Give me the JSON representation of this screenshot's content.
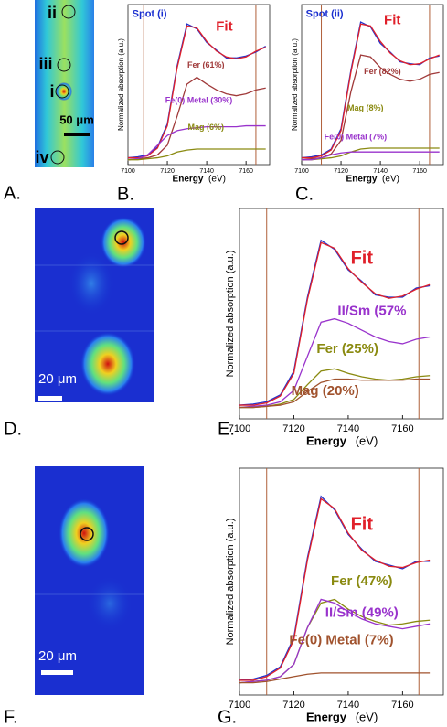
{
  "panels": [
    {
      "label": "A.",
      "spots": [
        "ii",
        "iii",
        "i",
        "iv"
      ],
      "scale": "50 μm"
    },
    {
      "label": "D.",
      "scale": "20 μm"
    },
    {
      "label": "F.",
      "scale": "20 μm"
    }
  ],
  "chart_data": [
    {
      "type": "line",
      "label": "B.",
      "title": "Spot (i)",
      "ylabel": "Normalized absorption (a.u.)",
      "xlabel": "Energy",
      "xunit": "(eV)",
      "xlim": [
        7100,
        7172
      ],
      "ylim": [
        -0.05,
        1.6
      ],
      "xticks": [
        7100,
        7120,
        7140,
        7160
      ],
      "markers": [
        7108,
        7165
      ],
      "x": [
        7100,
        7105,
        7110,
        7115,
        7120,
        7125,
        7130,
        7135,
        7140,
        7145,
        7150,
        7155,
        7160,
        7165,
        7170
      ],
      "series": [
        {
          "color": "#2233cc",
          "values": [
            0.02,
            0.03,
            0.05,
            0.13,
            0.37,
            0.97,
            1.4,
            1.35,
            1.21,
            1.13,
            1.05,
            1.05,
            1.07,
            1.11,
            1.17
          ]
        },
        {
          "name": "Fit",
          "color": "#e0202a",
          "values": [
            0.02,
            0.02,
            0.04,
            0.12,
            0.35,
            0.95,
            1.38,
            1.36,
            1.22,
            1.12,
            1.06,
            1.04,
            1.06,
            1.12,
            1.16
          ]
        },
        {
          "name": "Fer (61%)",
          "color": "#a03a3a",
          "values": [
            0,
            0.01,
            0.02,
            0.05,
            0.15,
            0.45,
            0.78,
            0.85,
            0.78,
            0.72,
            0.68,
            0.66,
            0.68,
            0.72,
            0.74
          ]
        },
        {
          "name": "Fe(0) Metal (30%)",
          "color": "#9933cc",
          "values": [
            0,
            0.01,
            0.05,
            0.15,
            0.25,
            0.3,
            0.32,
            0.33,
            0.34,
            0.34,
            0.34,
            0.34,
            0.35,
            0.35,
            0.35
          ]
        },
        {
          "name": "Mag (6%)",
          "color": "#8a8a10",
          "values": [
            0,
            0,
            0.01,
            0.02,
            0.04,
            0.08,
            0.1,
            0.11,
            0.11,
            0.11,
            0.11,
            0.11,
            0.11,
            0.11,
            0.11
          ]
        }
      ]
    },
    {
      "type": "line",
      "label": "C.",
      "title": "Spot (ii)",
      "ylabel": "Normalized absorption (a.u.)",
      "xlabel": "Energy",
      "xunit": "(eV)",
      "xlim": [
        7100,
        7172
      ],
      "ylim": [
        -0.05,
        1.6
      ],
      "xticks": [
        7100,
        7120,
        7140,
        7160
      ],
      "markers": [
        7110,
        7165
      ],
      "x": [
        7100,
        7105,
        7110,
        7115,
        7120,
        7125,
        7130,
        7135,
        7140,
        7145,
        7150,
        7155,
        7160,
        7165,
        7170
      ],
      "series": [
        {
          "color": "#2233cc",
          "values": [
            0.02,
            0.03,
            0.05,
            0.11,
            0.32,
            0.92,
            1.42,
            1.37,
            1.2,
            1.11,
            1.01,
            0.99,
            0.98,
            1.05,
            1.07
          ]
        },
        {
          "name": "Fit",
          "color": "#e0202a",
          "values": [
            0.02,
            0.02,
            0.04,
            0.1,
            0.3,
            0.9,
            1.4,
            1.38,
            1.22,
            1.1,
            1.02,
            0.98,
            0.99,
            1.04,
            1.08
          ]
        },
        {
          "name": "Fer (82%)",
          "color": "#a03a3a",
          "values": [
            0,
            0.01,
            0.02,
            0.06,
            0.2,
            0.7,
            1.08,
            1.06,
            0.95,
            0.88,
            0.83,
            0.81,
            0.83,
            0.88,
            0.9
          ]
        },
        {
          "name": "Mag (8%)",
          "color": "#8a8a10",
          "values": [
            0,
            0,
            0.01,
            0.02,
            0.04,
            0.08,
            0.11,
            0.12,
            0.12,
            0.12,
            0.12,
            0.12,
            0.12,
            0.12,
            0.12
          ]
        },
        {
          "name": "Fe(0) Metal (7%)",
          "color": "#9933cc",
          "values": [
            0,
            0,
            0.02,
            0.05,
            0.07,
            0.08,
            0.08,
            0.08,
            0.08,
            0.08,
            0.08,
            0.08,
            0.08,
            0.08,
            0.08
          ]
        }
      ]
    },
    {
      "type": "line",
      "label": "E.",
      "ylabel": "Normalized absorption (a.u.)",
      "xlabel": "Energy",
      "xunit": "(eV)",
      "xlim": [
        7100,
        7175
      ],
      "ylim": [
        -0.1,
        1.75
      ],
      "xticks": [
        7100,
        7120,
        7140,
        7160
      ],
      "markers": [
        7110,
        7166
      ],
      "x": [
        7100,
        7105,
        7110,
        7115,
        7120,
        7125,
        7130,
        7135,
        7140,
        7145,
        7150,
        7155,
        7160,
        7165,
        7170
      ],
      "series": [
        {
          "color": "#2233cc",
          "values": [
            0.02,
            0.03,
            0.05,
            0.11,
            0.32,
            0.97,
            1.47,
            1.39,
            1.21,
            1.11,
            0.99,
            0.97,
            0.97,
            1.05,
            1.07
          ]
        },
        {
          "name": "Fit",
          "color": "#e0202a",
          "values": [
            0.02,
            0.02,
            0.04,
            0.1,
            0.3,
            0.95,
            1.45,
            1.4,
            1.22,
            1.1,
            1.0,
            0.96,
            0.98,
            1.04,
            1.08
          ]
        },
        {
          "name": "II/Sm (57%",
          "color": "#9933cc",
          "values": [
            0,
            0.01,
            0.02,
            0.05,
            0.15,
            0.45,
            0.75,
            0.78,
            0.74,
            0.68,
            0.62,
            0.58,
            0.56,
            0.6,
            0.62
          ]
        },
        {
          "name": "Fer (25%)",
          "color": "#8a8a10",
          "values": [
            0,
            0,
            0.01,
            0.03,
            0.07,
            0.2,
            0.32,
            0.34,
            0.3,
            0.27,
            0.25,
            0.24,
            0.25,
            0.27,
            0.28
          ]
        },
        {
          "name": "Mag (20%)",
          "color": "#a0522d",
          "values": [
            0,
            0,
            0.01,
            0.02,
            0.05,
            0.14,
            0.22,
            0.25,
            0.25,
            0.24,
            0.24,
            0.24,
            0.24,
            0.25,
            0.25
          ]
        }
      ]
    },
    {
      "type": "line",
      "label": "G.",
      "ylabel": "Normalized absorption (a.u.)",
      "xlabel": "Energy",
      "xunit": "(eV)",
      "xlim": [
        7100,
        7175
      ],
      "ylim": [
        -0.1,
        1.75
      ],
      "xticks": [
        7100,
        7120,
        7140,
        7160
      ],
      "markers": [
        7110,
        7166
      ],
      "x": [
        7100,
        7105,
        7110,
        7115,
        7120,
        7125,
        7130,
        7135,
        7140,
        7145,
        7150,
        7155,
        7160,
        7165,
        7170
      ],
      "series": [
        {
          "color": "#2233cc",
          "values": [
            0.02,
            0.03,
            0.06,
            0.13,
            0.37,
            1.02,
            1.52,
            1.41,
            1.21,
            1.09,
            0.99,
            0.96,
            0.93,
            0.99,
            0.99
          ]
        },
        {
          "name": "Fit",
          "color": "#e0202a",
          "values": [
            0.02,
            0.02,
            0.05,
            0.12,
            0.35,
            1.0,
            1.5,
            1.42,
            1.22,
            1.08,
            1.0,
            0.95,
            0.94,
            0.98,
            1.0
          ]
        },
        {
          "name": "Fer (47%)",
          "color": "#8a8a10",
          "values": [
            0,
            0.01,
            0.02,
            0.05,
            0.15,
            0.45,
            0.65,
            0.68,
            0.6,
            0.54,
            0.5,
            0.47,
            0.48,
            0.5,
            0.51
          ]
        },
        {
          "name": "II/Sm (49%)",
          "color": "#9933cc",
          "values": [
            0,
            0.01,
            0.02,
            0.05,
            0.15,
            0.45,
            0.68,
            0.65,
            0.58,
            0.52,
            0.48,
            0.46,
            0.44,
            0.46,
            0.48
          ]
        },
        {
          "name": "Fe(0) Metal (7%)",
          "color": "#a0522d",
          "values": [
            0,
            0,
            0.01,
            0.03,
            0.05,
            0.07,
            0.08,
            0.08,
            0.08,
            0.08,
            0.08,
            0.08,
            0.08,
            0.08,
            0.08
          ]
        }
      ]
    }
  ]
}
